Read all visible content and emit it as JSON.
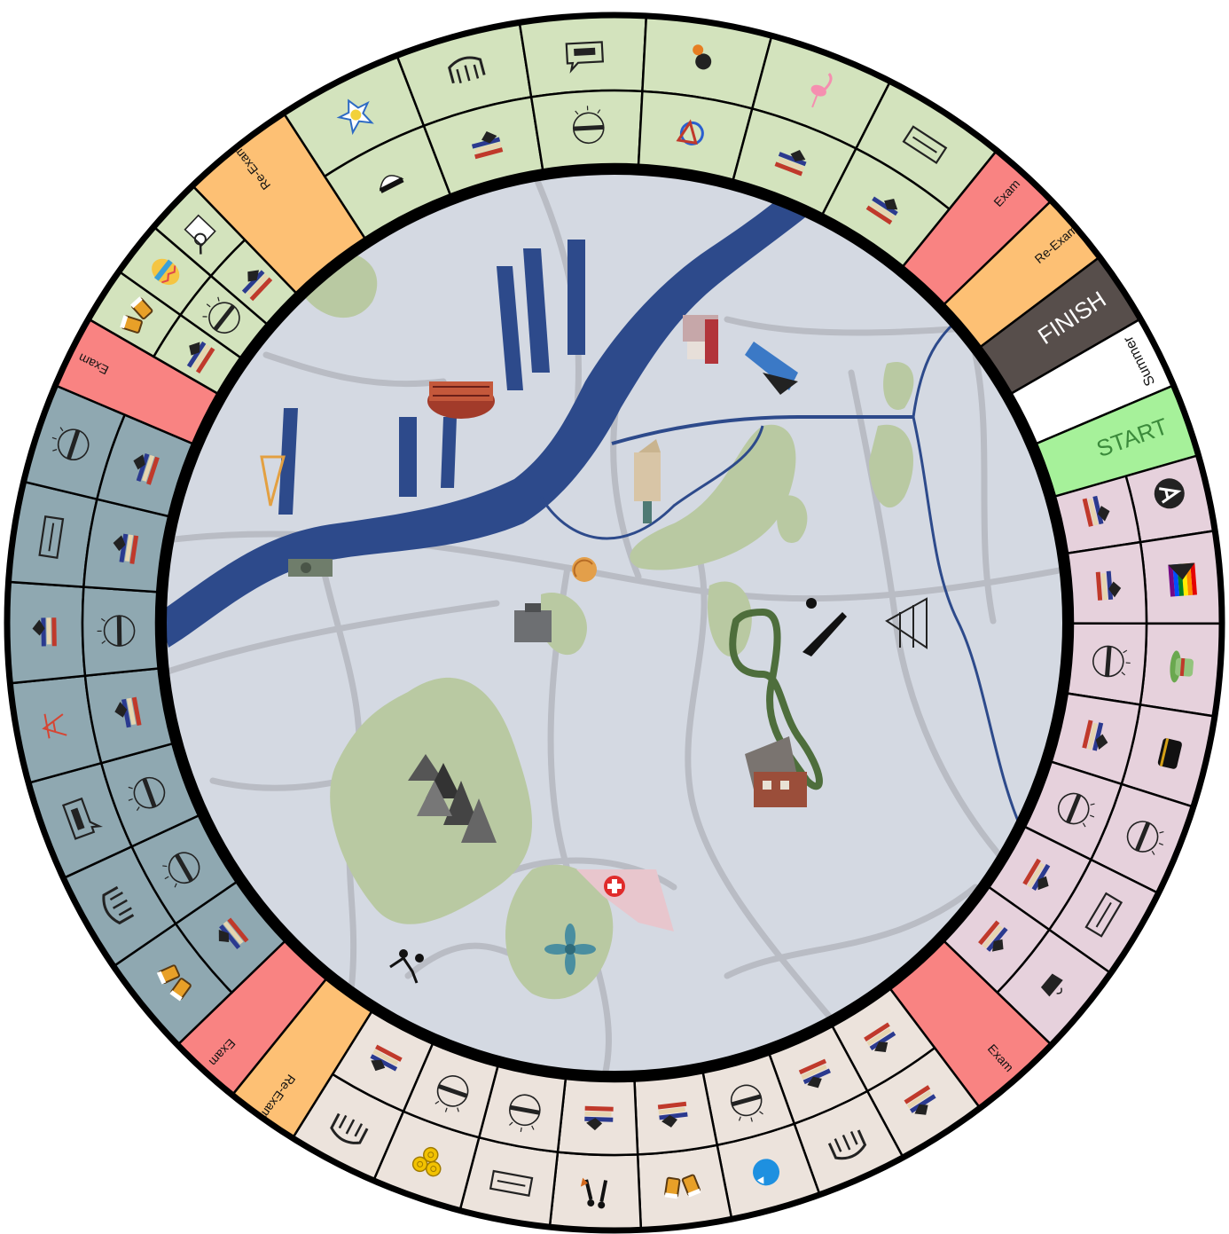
{
  "board": {
    "colors": {
      "spring": "#d3e3bd",
      "autumn": "#ece3dc",
      "winter": "#8fa8b1",
      "summer_pink": "#e6d1dc",
      "exam": "#f98382",
      "reexam": "#fdc074",
      "finish": "#574e4b",
      "start": "#a6f19a",
      "map_bg": "#d4d9e2",
      "water": "#2d4a8b",
      "park": "#b9c9a2",
      "road": "#b4b7bf"
    },
    "special": {
      "start": "START",
      "finish": "FINISH",
      "summer": "Summer",
      "exam": "Exam",
      "reexam": "Re-Exam"
    },
    "sections": [
      {
        "key": "pink",
        "color": "#e6d1dc",
        "start": 11,
        "end": 134,
        "cells": [
          {
            "outer": "study-icon",
            "inner": "challenge-icon"
          },
          {
            "outer": "festu-icon",
            "inner": "challenge-icon"
          },
          {
            "outer": "dots-logo-icon",
            "inner": "challenge-icon"
          },
          {
            "outer": "flower-wreath-icon",
            "inner": "challenge-icon"
          },
          {
            "outer": "beer-cheers-icon",
            "inner": "study-icon"
          },
          {
            "outer": "chairs-logo-icon",
            "inner": "challenge-icon"
          },
          {
            "outer": "festu-icon",
            "inner": "challenge-icon"
          },
          {
            "outer": "letter-a-logo-icon",
            "inner": "study-icon"
          },
          {
            "outer": "pride-flag-icon",
            "inner": "study-icon"
          },
          {
            "outer": "green-hat-icon",
            "inner": "challenge-icon"
          },
          {
            "outer": "black-hat-icon",
            "inner": "study-icon"
          },
          {
            "outer": "challenge-icon",
            "inner": "challenge-icon"
          },
          {
            "outer": "gasquen-icon",
            "inner": "study-icon"
          },
          {
            "outer": "coffee-icon",
            "inner": "study-icon"
          }
        ]
      },
      {
        "key": "exam",
        "label": "Exam",
        "color": "#f98382",
        "start": 134,
        "end": 143
      },
      {
        "key": "autumn",
        "color": "#ece3dc",
        "start": 143,
        "end": 212,
        "cells": [
          {
            "outer": "study-icon",
            "inner": "study-icon"
          },
          {
            "outer": "festu-icon",
            "inner": "study-icon"
          },
          {
            "outer": "sticker-icon",
            "inner": "challenge-icon"
          },
          {
            "outer": "beer-cheers-icon",
            "inner": "study-icon"
          },
          {
            "outer": "dancing-couple-icon",
            "inner": "study-icon"
          },
          {
            "outer": "gasquen-icon",
            "inner": "challenge-icon"
          },
          {
            "outer": "cinnamon-buns-icon",
            "inner": "challenge-icon"
          },
          {
            "outer": "festu-icon",
            "inner": "study-icon"
          }
        ]
      },
      {
        "key": "reexam",
        "label": "Re-Exam",
        "color": "#fdc074",
        "start": 212,
        "end": 219
      },
      {
        "key": "exam",
        "label": "Exam",
        "color": "#f98382",
        "start": 219,
        "end": 226
      },
      {
        "key": "winter",
        "color": "#8fa8b1",
        "start": 226,
        "end": 293,
        "cells": [
          {
            "outer": "beer-cheers-icon",
            "inner": "study-icon"
          },
          {
            "outer": "festu-icon",
            "inner": "challenge-icon"
          },
          {
            "outer": "quiz-icon",
            "inner": "challenge-icon"
          },
          {
            "outer": "crane-icon",
            "inner": "study-icon"
          },
          {
            "outer": "study-icon",
            "inner": "challenge-icon"
          },
          {
            "outer": "gasquen-icon",
            "inner": "study-icon"
          },
          {
            "outer": "challenge-icon",
            "inner": "study-icon"
          }
        ]
      },
      {
        "key": "exam",
        "label": "Exam",
        "color": "#f98382",
        "start": 293,
        "end": 300
      },
      {
        "key": "spring",
        "color": "#d3e3bd",
        "start": 300,
        "end": 316,
        "cells": [
          {
            "outer": "beer-cheers-icon",
            "inner": "study-icon"
          },
          {
            "outer": "easter-egg-icon",
            "inner": "challenge-icon"
          },
          {
            "outer": "job-search-icon",
            "inner": "study-icon"
          }
        ]
      },
      {
        "key": "reexam",
        "label": "Re-Exam",
        "color": "#fdc074",
        "start": 316,
        "end": 327
      },
      {
        "key": "spring",
        "color": "#d3e3bd",
        "start": 327,
        "end": 399,
        "cells": [
          {
            "outer": "badge-icon",
            "inner": "student-cap-icon"
          },
          {
            "outer": "festu-icon",
            "inner": "study-icon"
          },
          {
            "outer": "quiz-icon",
            "inner": "challenge-icon"
          },
          {
            "outer": "flower-skull-icon",
            "inner": "race-logo-icon"
          },
          {
            "outer": "flamingo-icon",
            "inner": "study-icon"
          },
          {
            "outer": "gasquen-icon",
            "inner": "study-icon"
          }
        ]
      },
      {
        "key": "exam",
        "label": "Exam",
        "color": "#f98382",
        "start": 399,
        "end": 406
      },
      {
        "key": "reexam",
        "label": "Re-Exam",
        "color": "#fdc074",
        "start": 406,
        "end": 413
      },
      {
        "key": "finish",
        "label": "FINISH",
        "color": "#574e4b",
        "start": 413,
        "end": 420
      },
      {
        "key": "summer",
        "label": "Summer",
        "color": "#ffffff",
        "start": 420,
        "end": 427
      },
      {
        "key": "start",
        "label": "START",
        "color": "#a6f19a",
        "start": 427,
        "end": 434
      }
    ],
    "landmarks": [
      "ship-hall-landmark",
      "tower-landmark",
      "ferry-landmark",
      "skyscraper-landmark",
      "church-tower-landmark",
      "crane-landmark",
      "fortress-landmark",
      "shell-landmark",
      "statue-landmark",
      "roller-coaster-landmark",
      "forest-landmark",
      "hospital-landmark",
      "flower-landmark",
      "runners-landmark",
      "university-landmark"
    ]
  }
}
